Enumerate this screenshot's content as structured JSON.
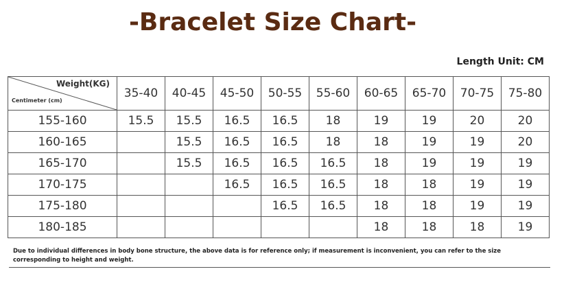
{
  "title": "-Bracelet Size Chart-",
  "unit_label": "Length Unit: CM",
  "table": {
    "corner_top": "Weight(KG)",
    "corner_bottom": "Centimeter (cm)",
    "columns": [
      "35-40",
      "40-45",
      "45-50",
      "50-55",
      "55-60",
      "60-65",
      "65-70",
      "70-75",
      "75-80"
    ],
    "rows": [
      {
        "height": "155-160",
        "values": [
          "15.5",
          "15.5",
          "16.5",
          "16.5",
          "18",
          "19",
          "19",
          "20",
          "20"
        ]
      },
      {
        "height": "160-165",
        "values": [
          "",
          "15.5",
          "16.5",
          "16.5",
          "18",
          "18",
          "19",
          "19",
          "20"
        ]
      },
      {
        "height": "165-170",
        "values": [
          "",
          "15.5",
          "16.5",
          "16.5",
          "16.5",
          "18",
          "19",
          "19",
          "19"
        ]
      },
      {
        "height": "170-175",
        "values": [
          "",
          "",
          "16.5",
          "16.5",
          "16.5",
          "18",
          "18",
          "19",
          "19"
        ]
      },
      {
        "height": "175-180",
        "values": [
          "",
          "",
          "",
          "16.5",
          "16.5",
          "18",
          "18",
          "19",
          "19"
        ]
      },
      {
        "height": "180-185",
        "values": [
          "",
          "",
          "",
          "",
          "",
          "18",
          "18",
          "18",
          "19"
        ]
      }
    ]
  },
  "note": "Due to individual differences in body bone structure, the above data is for reference only; if measurement is inconvenient, you can refer to the size corresponding to height and weight."
}
